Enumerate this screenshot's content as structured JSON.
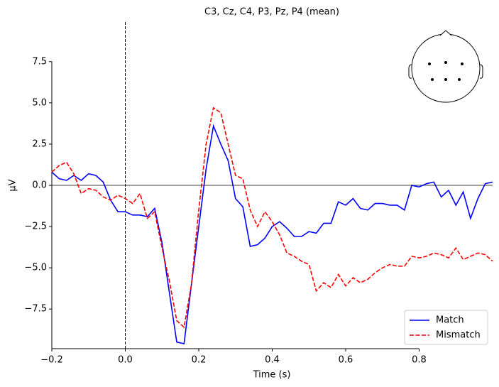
{
  "chart_data": {
    "type": "line",
    "title": "C3, Cz, C4, P3, Pz, P4 (mean)",
    "x_label": "Time (s)",
    "y_label": "µV",
    "x": [
      -0.2,
      -0.18,
      -0.16,
      -0.14,
      -0.12,
      -0.1,
      -0.08,
      -0.06,
      -0.04,
      -0.02,
      0,
      0.02,
      0.04,
      0.06,
      0.08,
      0.1,
      0.12,
      0.14,
      0.16,
      0.18,
      0.2,
      0.22,
      0.24,
      0.26,
      0.28,
      0.3,
      0.32,
      0.34,
      0.36,
      0.38,
      0.4,
      0.42,
      0.44,
      0.46,
      0.48,
      0.5,
      0.52,
      0.54,
      0.56,
      0.58,
      0.6,
      0.62,
      0.64,
      0.66,
      0.68,
      0.7,
      0.72,
      0.74,
      0.76,
      0.78,
      0.8,
      0.82,
      0.84,
      0.86,
      0.88,
      0.9,
      0.92,
      0.94,
      0.96,
      0.98,
      1.0
    ],
    "series": [
      {
        "name": "Match",
        "color": "#0000ff",
        "dash": false,
        "values": [
          0.8,
          0.4,
          0.3,
          0.6,
          0.3,
          0.7,
          0.6,
          0.2,
          -0.9,
          -1.6,
          -1.6,
          -1.8,
          -1.8,
          -1.9,
          -1.4,
          -3.5,
          -6.5,
          -9.5,
          -9.6,
          -6.0,
          -2.5,
          1.0,
          3.6,
          2.5,
          1.5,
          -0.8,
          -1.3,
          -3.7,
          -3.6,
          -3.2,
          -2.5,
          -2.2,
          -2.6,
          -3.1,
          -3.1,
          -2.8,
          -2.9,
          -2.3,
          -2.3,
          -1.0,
          -1.2,
          -0.8,
          -1.4,
          -1.5,
          -1.1,
          -1.1,
          -1.2,
          -1.2,
          -1.5,
          0.0,
          -0.1,
          0.1,
          0.2,
          -0.7,
          -0.3,
          -1.2,
          -0.4,
          -2.0,
          -0.8,
          0.1,
          0.2
        ]
      },
      {
        "name": "Mismatch",
        "color": "#ff0000",
        "dash": true,
        "values": [
          0.8,
          1.2,
          1.4,
          0.7,
          -0.5,
          -0.2,
          -0.3,
          -0.7,
          -0.9,
          -0.6,
          -0.8,
          -1.1,
          -0.5,
          -2.0,
          -1.6,
          -3.8,
          -5.8,
          -8.2,
          -8.6,
          -6.0,
          -1.5,
          2.5,
          4.7,
          4.4,
          2.5,
          0.6,
          0.4,
          -1.5,
          -2.5,
          -1.6,
          -2.2,
          -3.0,
          -4.1,
          -4.3,
          -4.6,
          -4.8,
          -6.4,
          -5.9,
          -6.2,
          -5.4,
          -6.1,
          -5.6,
          -5.9,
          -5.7,
          -5.3,
          -5.0,
          -4.8,
          -4.9,
          -4.9,
          -4.3,
          -4.4,
          -4.3,
          -4.1,
          -4.2,
          -4.4,
          -3.8,
          -4.5,
          -4.3,
          -4.1,
          -4.2,
          -4.6
        ]
      }
    ],
    "xlim": [
      -0.2,
      1.0
    ],
    "ylim": [
      -9.9,
      9.9
    ],
    "xticks": [
      {
        "value": -0.2,
        "label": "−0.2"
      },
      {
        "value": 0,
        "label": "0.0"
      },
      0.2,
      0.4,
      0.6,
      0.8
    ],
    "yticks": [
      {
        "value": -7.5,
        "label": "−7.5"
      },
      {
        "value": -5,
        "label": "−5.0"
      },
      {
        "value": -2.5,
        "label": "−2.5"
      },
      {
        "value": 0,
        "label": "0.0"
      },
      2.5,
      {
        "value": 5,
        "label": "5.0"
      },
      7.5
    ],
    "vlines": [
      0
    ],
    "hlines": [
      0
    ],
    "legend": "lower right",
    "grid": false
  }
}
